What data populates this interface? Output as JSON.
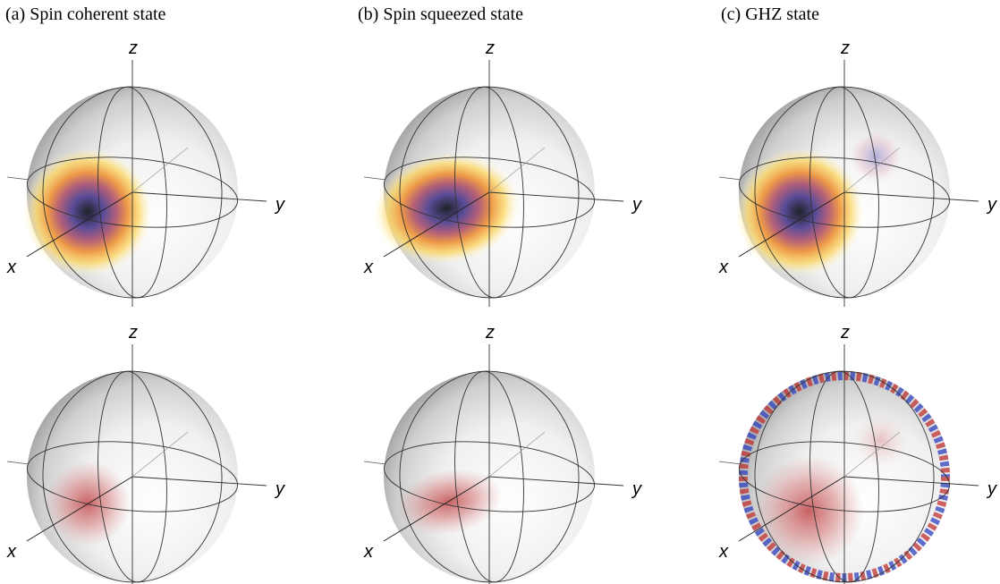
{
  "panels": [
    {
      "title": "(a) Spin coherent state",
      "spheres": [
        {
          "z": "z",
          "y": "y",
          "x": "x"
        },
        {
          "z": "z",
          "y": "y",
          "x": "x"
        }
      ]
    },
    {
      "title": "(b) Spin squeezed state",
      "spheres": [
        {
          "z": "z",
          "y": "y",
          "x": "x"
        },
        {
          "z": "z",
          "y": "y",
          "x": "x"
        }
      ]
    },
    {
      "title": "(c) GHZ state",
      "spheres": [
        {
          "z": "z",
          "y": "y",
          "x": "x"
        },
        {
          "z": "z",
          "y": "y",
          "x": "x"
        }
      ]
    }
  ]
}
